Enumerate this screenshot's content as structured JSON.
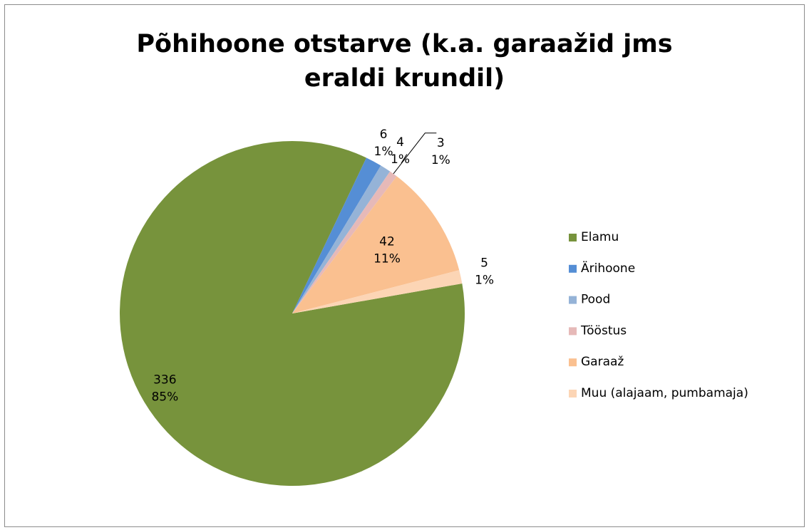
{
  "chart_data": {
    "type": "pie",
    "title": "Põhihoone otstarve (k.a. garaažid jms eraldi krundil)",
    "categories": [
      "Elamu",
      "Ärihoone",
      "Pood",
      "Tööstus",
      "Garaaž",
      "Muu (alajaam, pumbamaja)"
    ],
    "values": [
      336,
      6,
      4,
      3,
      42,
      5
    ],
    "percent_labels": [
      "85%",
      "1%",
      "1%",
      "1%",
      "11%",
      "1%"
    ],
    "colors": [
      "#77933c",
      "#558ed5",
      "#95b3d7",
      "#e6b9b8",
      "#fac090",
      "#fcd5b5"
    ],
    "legend": "right"
  }
}
